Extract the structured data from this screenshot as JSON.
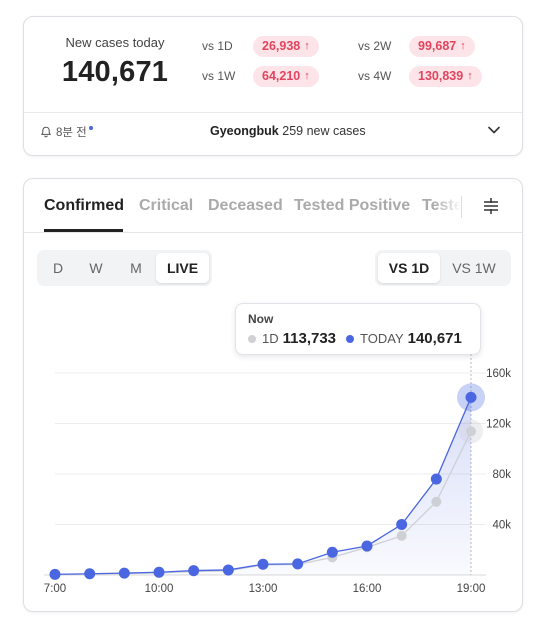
{
  "summary": {
    "today_label": "New cases today",
    "today_value": "140,671",
    "comparisons": [
      {
        "label": "vs 1D",
        "value": "26,938"
      },
      {
        "label": "vs 2W",
        "value": "99,687"
      },
      {
        "label": "vs 1W",
        "value": "64,210"
      },
      {
        "label": "vs 4W",
        "value": "130,839"
      }
    ],
    "arrow_glyph": "↑",
    "time_ago": "8분 전",
    "region_name": "Gyeongbuk",
    "region_text": " 259 new cases"
  },
  "tabs": [
    "Confirmed",
    "Critical",
    "Deceased",
    "Tested Positive",
    "Tested"
  ],
  "range_buttons": [
    "D",
    "W",
    "M",
    "LIVE"
  ],
  "range_active": "LIVE",
  "compare_buttons": [
    "VS 1D",
    "VS 1W"
  ],
  "compare_active": "VS 1D",
  "tooltip": {
    "title": "Now",
    "prev_label": "1D",
    "prev_value": "113,733",
    "today_label": "TODAY",
    "today_value": "140,671"
  },
  "colors": {
    "today": "#4a66e0",
    "previous": "#cfcfd6",
    "increase": "#e0445e",
    "increase_bg": "#fde4e8"
  },
  "chart_data": {
    "type": "line",
    "x": [
      "7:00",
      "8:00",
      "9:00",
      "10:00",
      "11:00",
      "12:00",
      "13:00",
      "14:00",
      "15:00",
      "16:00",
      "17:00",
      "18:00",
      "19:00"
    ],
    "x_tick_labels": [
      "7:00",
      "10:00",
      "13:00",
      "16:00",
      "19:00"
    ],
    "y_tick_labels": [
      "40k",
      "80k",
      "120k",
      "160k"
    ],
    "ylim": [
      0,
      160000
    ],
    "y_axis_side": "right",
    "grid": true,
    "series": [
      {
        "name": "1D",
        "color": "#cfcfd6",
        "values": [
          300,
          800,
          1200,
          1700,
          2800,
          3300,
          8000,
          8300,
          14000,
          22000,
          31000,
          58000,
          113733
        ]
      },
      {
        "name": "TODAY",
        "color": "#4a66e0",
        "values": [
          500,
          1000,
          1500,
          2200,
          3500,
          4000,
          8500,
          8800,
          18000,
          23000,
          40000,
          76000,
          140671
        ]
      }
    ]
  }
}
